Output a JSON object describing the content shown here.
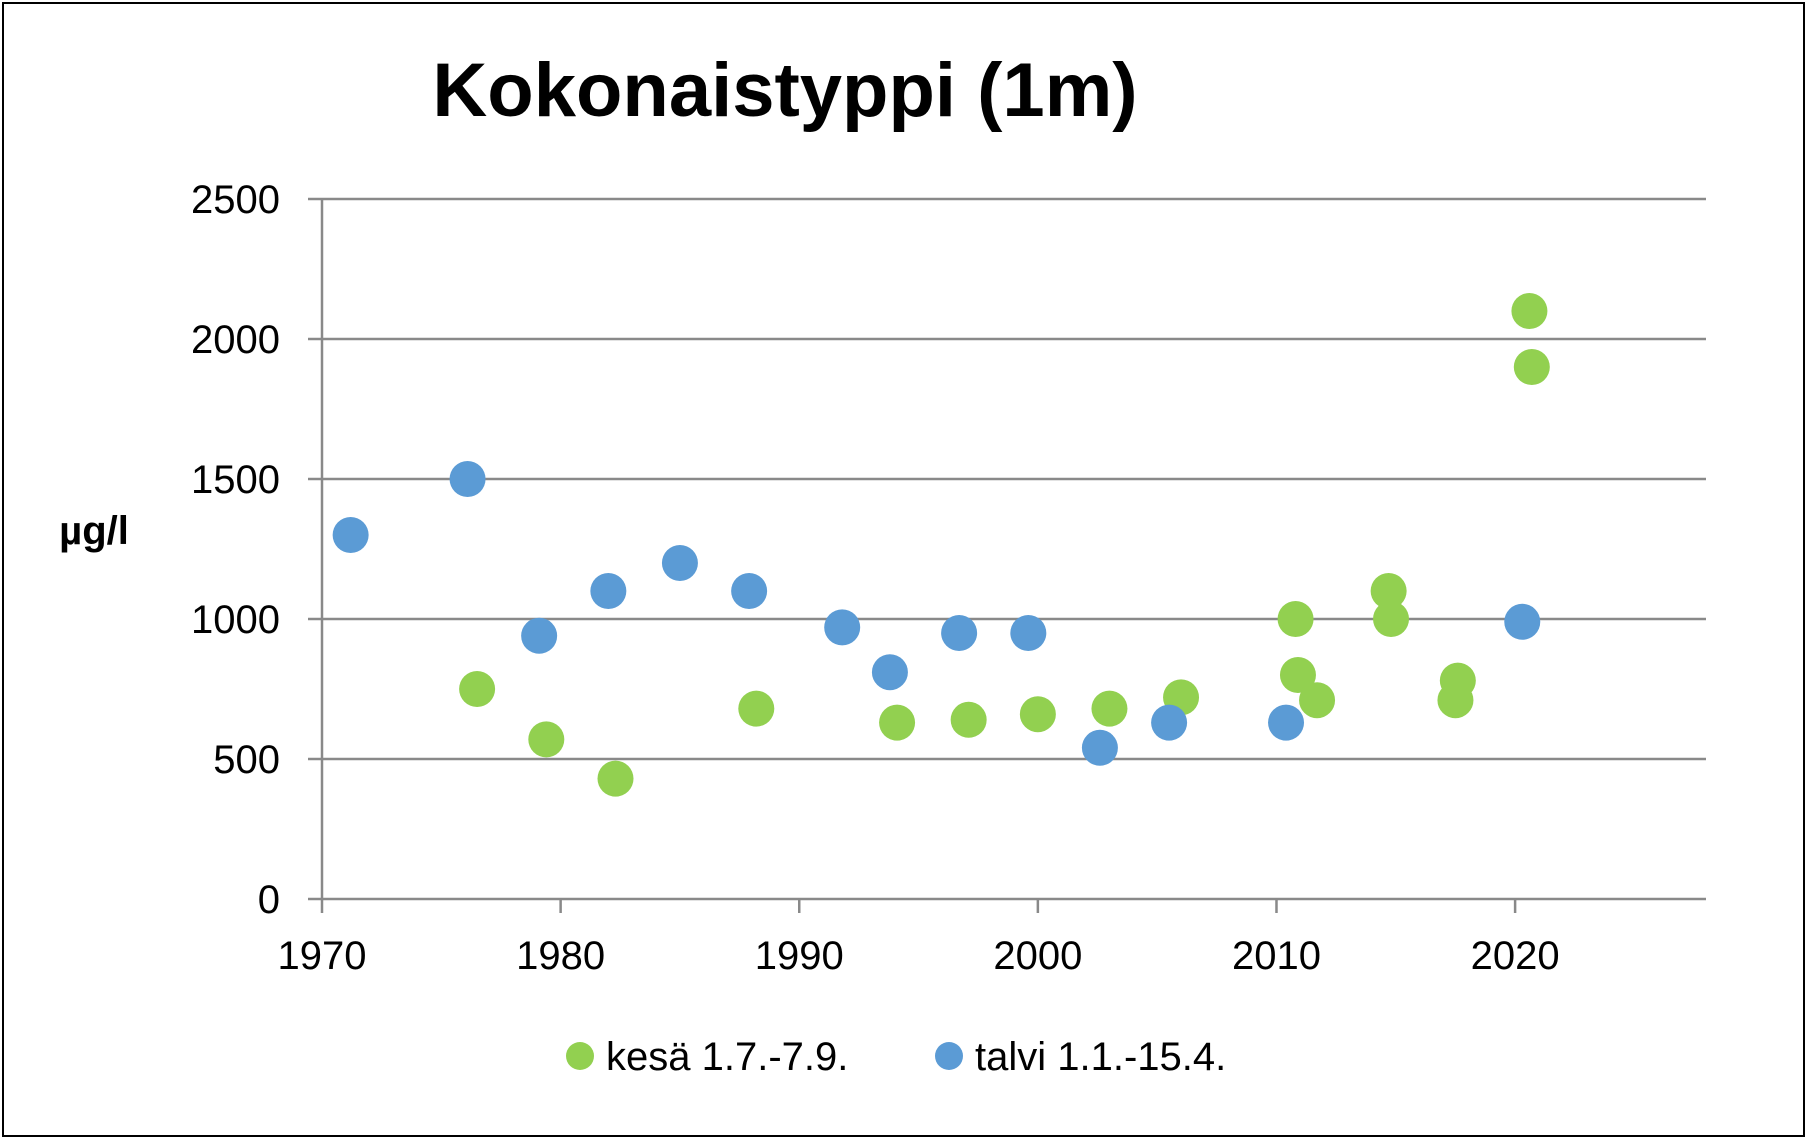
{
  "chart_data": {
    "type": "scatter",
    "title": "Kokonaistyppi (1m)",
    "xlabel": "",
    "ylabel": "µg/l",
    "xlim": [
      1970,
      2028
    ],
    "ylim": [
      0,
      2500
    ],
    "x_ticks": [
      1970,
      1980,
      1990,
      2000,
      2010,
      2020
    ],
    "y_ticks": [
      0,
      500,
      1000,
      1500,
      2000,
      2500
    ],
    "grid": "horizontal",
    "legend_position": "bottom",
    "series": [
      {
        "name": "kesä 1.7.-7.9.",
        "color": "#92d050",
        "points": [
          {
            "x": 1976.5,
            "y": 750
          },
          {
            "x": 1979.4,
            "y": 570
          },
          {
            "x": 1982.3,
            "y": 430
          },
          {
            "x": 1988.2,
            "y": 680
          },
          {
            "x": 1994.1,
            "y": 630
          },
          {
            "x": 1997.1,
            "y": 640
          },
          {
            "x": 2000.0,
            "y": 660
          },
          {
            "x": 2003.0,
            "y": 680
          },
          {
            "x": 2006.0,
            "y": 720
          },
          {
            "x": 2010.8,
            "y": 1000
          },
          {
            "x": 2010.9,
            "y": 800
          },
          {
            "x": 2011.7,
            "y": 710
          },
          {
            "x": 2014.7,
            "y": 1100
          },
          {
            "x": 2014.8,
            "y": 1000
          },
          {
            "x": 2017.6,
            "y": 780
          },
          {
            "x": 2017.5,
            "y": 710
          },
          {
            "x": 2020.6,
            "y": 2100
          },
          {
            "x": 2020.7,
            "y": 1900
          }
        ]
      },
      {
        "name": "talvi 1.1.-15.4.",
        "color": "#5b9bd5",
        "points": [
          {
            "x": 1971.2,
            "y": 1300
          },
          {
            "x": 1976.1,
            "y": 1500
          },
          {
            "x": 1979.1,
            "y": 940
          },
          {
            "x": 1982.0,
            "y": 1100
          },
          {
            "x": 1985.0,
            "y": 1200
          },
          {
            "x": 1987.9,
            "y": 1100
          },
          {
            "x": 1991.8,
            "y": 970
          },
          {
            "x": 1993.8,
            "y": 810
          },
          {
            "x": 1996.7,
            "y": 950
          },
          {
            "x": 1999.6,
            "y": 950
          },
          {
            "x": 2002.6,
            "y": 540
          },
          {
            "x": 2005.5,
            "y": 630
          },
          {
            "x": 2010.4,
            "y": 630
          },
          {
            "x": 2020.3,
            "y": 990
          }
        ]
      }
    ]
  }
}
